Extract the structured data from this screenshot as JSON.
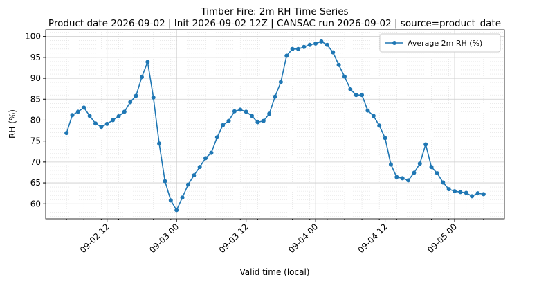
{
  "chart_data": {
    "type": "line",
    "title": "Timber Fire: 2m RH Time Series",
    "subtitle": "Product date 2026-09-02 | Init 2026-09-02 12Z | CANSAC run 2026-09-02 | source=product_date",
    "x_label": "Valid time (local)",
    "y_label": "RH (%)",
    "x": [
      "09-02 05",
      "09-02 06",
      "09-02 07",
      "09-02 08",
      "09-02 09",
      "09-02 10",
      "09-02 11",
      "09-02 12",
      "09-02 13",
      "09-02 14",
      "09-02 15",
      "09-02 16",
      "09-02 17",
      "09-02 18",
      "09-02 19",
      "09-02 20",
      "09-02 21",
      "09-02 22",
      "09-02 23",
      "09-03 00",
      "09-03 01",
      "09-03 02",
      "09-03 03",
      "09-03 04",
      "09-03 05",
      "09-03 06",
      "09-03 07",
      "09-03 08",
      "09-03 09",
      "09-03 10",
      "09-03 11",
      "09-03 12",
      "09-03 13",
      "09-03 14",
      "09-03 15",
      "09-03 16",
      "09-03 17",
      "09-03 18",
      "09-03 19",
      "09-03 20",
      "09-03 21",
      "09-03 22",
      "09-03 23",
      "09-04 00",
      "09-04 01",
      "09-04 02",
      "09-04 03",
      "09-04 04",
      "09-04 05",
      "09-04 06",
      "09-04 07",
      "09-04 08",
      "09-04 09",
      "09-04 10",
      "09-04 11",
      "09-04 12",
      "09-04 13",
      "09-04 14",
      "09-04 15",
      "09-04 16",
      "09-04 17",
      "09-04 18",
      "09-04 19",
      "09-04 20",
      "09-04 21",
      "09-04 22",
      "09-04 23",
      "09-05 00",
      "09-05 01",
      "09-05 02",
      "09-05 03",
      "09-05 04",
      "09-05 05"
    ],
    "series": [
      {
        "name": "Average 2m RH (%)",
        "color": "#1f77b4",
        "values": [
          76.9,
          81.2,
          82,
          83,
          81,
          79.2,
          78.4,
          79.1,
          80,
          80.9,
          82,
          84.3,
          85.8,
          90.3,
          93.9,
          85.4,
          74.4,
          65.4,
          60.8,
          58.5,
          61.5,
          64.6,
          66.8,
          68.8,
          70.9,
          72.2,
          75.9,
          78.8,
          79.8,
          82.1,
          82.5,
          82,
          81,
          79.5,
          79.8,
          81.5,
          85.6,
          89.1,
          95.4,
          97,
          97,
          97.5,
          98,
          98.3,
          98.8,
          98,
          96.2,
          93.2,
          90.4,
          87.4,
          86,
          86,
          82.3,
          81,
          78.7,
          75.7,
          69.4,
          66.4,
          66.1,
          65.6,
          67.4,
          69.6,
          74.2,
          68.8,
          67.3,
          65.1,
          63.5,
          63,
          62.8,
          62.6,
          61.8,
          62.5,
          62.3
        ]
      }
    ],
    "xticks": [
      "09-02 12",
      "09-03 00",
      "09-03 12",
      "09-04 00",
      "09-04 12",
      "09-05 00"
    ],
    "ylim": [
      56.4,
      101.6
    ],
    "yticks": [
      60,
      65,
      70,
      75,
      80,
      85,
      90,
      95,
      100
    ],
    "grid": true,
    "legend": "upper right"
  }
}
